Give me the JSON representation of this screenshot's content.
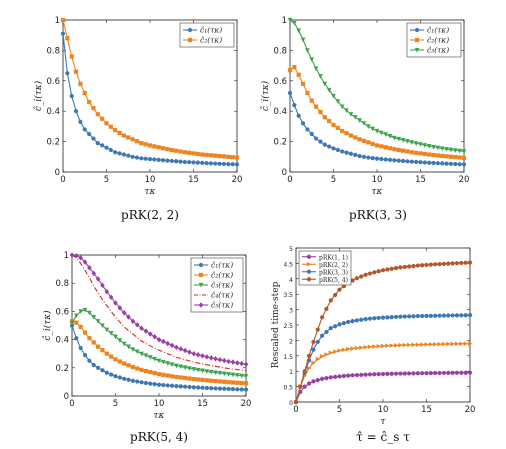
{
  "chart_data": [
    {
      "type": "line",
      "caption": "pRK(2, 2)",
      "xlabel": "τκ",
      "ylabel": "ĉ_i(τκ)",
      "xlim": [
        0,
        20
      ],
      "ylim": [
        0,
        1
      ],
      "xticks": [
        "0",
        "5",
        "10",
        "15",
        "20"
      ],
      "yticks": [
        "0",
        "0.2",
        "0.4",
        "0.6",
        "0.8",
        "1"
      ],
      "legend": "top-right",
      "series": [
        {
          "name": "ĉ₁(τκ)",
          "color": "#3c78b4",
          "marker": "circle",
          "x": [
            0,
            0.5,
            1,
            1.5,
            2,
            2.5,
            3,
            4,
            5,
            6,
            7,
            8,
            9,
            10,
            12,
            14,
            16,
            18,
            20
          ],
          "y": [
            0.91,
            0.65,
            0.5,
            0.4,
            0.33,
            0.28,
            0.25,
            0.19,
            0.16,
            0.13,
            0.115,
            0.1,
            0.09,
            0.085,
            0.075,
            0.066,
            0.06,
            0.054,
            0.05
          ]
        },
        {
          "name": "ĉ₂(τκ)",
          "color": "#ee8420",
          "marker": "square",
          "x": [
            0,
            0.5,
            1,
            1.5,
            2,
            2.5,
            3,
            4,
            5,
            6,
            7,
            8,
            9,
            10,
            12,
            14,
            16,
            18,
            20
          ],
          "y": [
            1.0,
            0.88,
            0.76,
            0.66,
            0.58,
            0.52,
            0.46,
            0.38,
            0.32,
            0.275,
            0.24,
            0.215,
            0.19,
            0.175,
            0.15,
            0.13,
            0.115,
            0.105,
            0.095
          ]
        }
      ]
    },
    {
      "type": "line",
      "caption": "pRK(3, 3)",
      "xlabel": "τκ",
      "ylabel": "ĉ_i(τκ)",
      "xlim": [
        0,
        20
      ],
      "ylim": [
        0,
        1
      ],
      "xticks": [
        "0",
        "5",
        "10",
        "15",
        "20"
      ],
      "yticks": [
        "0",
        "0.2",
        "0.4",
        "0.6",
        "0.8",
        "1"
      ],
      "legend": "top-right",
      "series": [
        {
          "name": "ĉ₁(τκ)",
          "color": "#3c78b4",
          "marker": "circle",
          "x": [
            0,
            0.5,
            1,
            1.5,
            2,
            2.5,
            3,
            4,
            5,
            6,
            7,
            8,
            9,
            10,
            12,
            14,
            16,
            18,
            20
          ],
          "y": [
            0.52,
            0.44,
            0.37,
            0.32,
            0.28,
            0.25,
            0.22,
            0.18,
            0.155,
            0.135,
            0.12,
            0.105,
            0.095,
            0.088,
            0.077,
            0.068,
            0.061,
            0.055,
            0.05
          ]
        },
        {
          "name": "ĉ₂(τκ)",
          "color": "#ee8420",
          "marker": "square",
          "x": [
            0,
            0.5,
            1,
            1.5,
            2,
            2.5,
            3,
            4,
            5,
            6,
            7,
            8,
            9,
            10,
            12,
            14,
            16,
            18,
            20
          ],
          "y": [
            0.67,
            0.69,
            0.64,
            0.58,
            0.52,
            0.47,
            0.43,
            0.36,
            0.31,
            0.27,
            0.24,
            0.215,
            0.195,
            0.175,
            0.15,
            0.13,
            0.115,
            0.103,
            0.093
          ]
        },
        {
          "name": "ĉ₃(τκ)",
          "color": "#3ea34e",
          "marker": "triangle-down",
          "x": [
            0,
            0.5,
            1,
            1.5,
            2,
            2.5,
            3,
            4,
            5,
            6,
            7,
            8,
            9,
            10,
            12,
            14,
            16,
            18,
            20
          ],
          "y": [
            1.0,
            0.98,
            0.93,
            0.87,
            0.8,
            0.74,
            0.68,
            0.58,
            0.5,
            0.43,
            0.38,
            0.34,
            0.3,
            0.27,
            0.225,
            0.195,
            0.17,
            0.15,
            0.135
          ]
        }
      ]
    },
    {
      "type": "line",
      "caption": "pRK(5, 4)",
      "xlabel": "τκ",
      "ylabel": "ĉ_i(τκ)",
      "xlim": [
        0,
        20
      ],
      "ylim": [
        0,
        1
      ],
      "xticks": [
        "0",
        "5",
        "10",
        "15",
        "20"
      ],
      "yticks": [
        "0",
        "0.2",
        "0.4",
        "0.6",
        "0.8",
        "1"
      ],
      "legend": "top-right",
      "series": [
        {
          "name": "ĉ₁(τκ)",
          "color": "#3c78b4",
          "marker": "circle",
          "x": [
            0,
            0.5,
            1,
            1.5,
            2,
            2.5,
            3,
            4,
            5,
            6,
            7,
            8,
            9,
            10,
            12,
            14,
            16,
            18,
            20
          ],
          "y": [
            0.5,
            0.41,
            0.34,
            0.29,
            0.25,
            0.22,
            0.2,
            0.165,
            0.14,
            0.122,
            0.108,
            0.097,
            0.088,
            0.08,
            0.07,
            0.062,
            0.055,
            0.05,
            0.045
          ]
        },
        {
          "name": "ĉ₂(τκ)",
          "color": "#ee8420",
          "marker": "square",
          "x": [
            0,
            0.5,
            1,
            1.5,
            2,
            2.5,
            3,
            4,
            5,
            6,
            7,
            8,
            9,
            10,
            12,
            14,
            16,
            18,
            20
          ],
          "y": [
            0.53,
            0.52,
            0.49,
            0.45,
            0.41,
            0.38,
            0.35,
            0.3,
            0.26,
            0.23,
            0.205,
            0.185,
            0.17,
            0.155,
            0.135,
            0.12,
            0.108,
            0.098,
            0.09
          ]
        },
        {
          "name": "ĉ₃(τκ)",
          "color": "#3ea34e",
          "marker": "triangle-down",
          "x": [
            0,
            0.5,
            1,
            1.5,
            2,
            2.5,
            3,
            4,
            5,
            6,
            7,
            8,
            9,
            10,
            12,
            14,
            16,
            18,
            20
          ],
          "y": [
            0.52,
            0.57,
            0.6,
            0.61,
            0.59,
            0.56,
            0.53,
            0.47,
            0.42,
            0.37,
            0.33,
            0.3,
            0.275,
            0.25,
            0.215,
            0.19,
            0.17,
            0.155,
            0.14
          ]
        },
        {
          "name": "ĉ₄(τκ)",
          "color": "#dd2222",
          "marker": "none",
          "dash": "dashdot",
          "x": [
            0,
            0.5,
            1,
            1.5,
            2,
            2.5,
            3,
            4,
            5,
            6,
            7,
            8,
            9,
            10,
            12,
            14,
            16,
            18,
            20
          ],
          "y": [
            1.0,
            0.98,
            0.94,
            0.89,
            0.84,
            0.78,
            0.73,
            0.64,
            0.56,
            0.49,
            0.44,
            0.39,
            0.355,
            0.325,
            0.275,
            0.24,
            0.215,
            0.195,
            0.18
          ]
        },
        {
          "name": "ĉ₅(τκ)",
          "color": "#9b3fa8",
          "marker": "diamond",
          "x": [
            0,
            0.5,
            1,
            1.5,
            2,
            2.5,
            3,
            4,
            5,
            6,
            7,
            8,
            9,
            10,
            12,
            14,
            16,
            18,
            20
          ],
          "y": [
            1.0,
            0.995,
            0.98,
            0.95,
            0.91,
            0.87,
            0.83,
            0.74,
            0.66,
            0.59,
            0.53,
            0.48,
            0.44,
            0.4,
            0.345,
            0.3,
            0.27,
            0.245,
            0.225
          ]
        }
      ]
    },
    {
      "type": "line",
      "caption": "τ̂ = ĉ_s τ",
      "xlabel": "τ",
      "ylabel": "Rescaled time-step",
      "xlim": [
        0,
        20
      ],
      "ylim": [
        0,
        5
      ],
      "xticks": [
        "0",
        "5",
        "10",
        "15",
        "20"
      ],
      "yticks": [
        "0",
        "0.5",
        "1",
        "1.5",
        "2",
        "2.5",
        "3",
        "3.5",
        "4",
        "4.5",
        "5"
      ],
      "legend": "top-left",
      "series": [
        {
          "name": "pRK(1, 1)",
          "color": "#9b3fa8",
          "marker": "circle",
          "x": [
            0,
            0.5,
            1,
            1.5,
            2,
            2.5,
            3,
            4,
            5,
            6,
            7,
            8,
            9,
            10,
            12,
            14,
            16,
            18,
            20
          ],
          "y": [
            0,
            0.33,
            0.5,
            0.6,
            0.67,
            0.71,
            0.75,
            0.8,
            0.83,
            0.857,
            0.875,
            0.889,
            0.9,
            0.909,
            0.923,
            0.933,
            0.941,
            0.947,
            0.952
          ]
        },
        {
          "name": "pRK(2, 2)",
          "color": "#ee8420",
          "marker": "triangle-right",
          "x": [
            0,
            0.5,
            1,
            1.5,
            2,
            2.5,
            3,
            4,
            5,
            6,
            7,
            8,
            9,
            10,
            12,
            14,
            16,
            18,
            20
          ],
          "y": [
            0,
            0.5,
            0.85,
            1.1,
            1.27,
            1.39,
            1.48,
            1.6,
            1.67,
            1.72,
            1.75,
            1.78,
            1.8,
            1.82,
            1.845,
            1.86,
            1.875,
            1.885,
            1.895
          ]
        },
        {
          "name": "pRK(3, 3)",
          "color": "#3c78b4",
          "marker": "circle",
          "x": [
            0,
            0.5,
            1,
            1.5,
            2,
            2.5,
            3,
            4,
            5,
            6,
            7,
            8,
            9,
            10,
            12,
            14,
            16,
            18,
            20
          ],
          "y": [
            0,
            0.5,
            0.95,
            1.35,
            1.7,
            1.95,
            2.15,
            2.4,
            2.52,
            2.6,
            2.65,
            2.69,
            2.72,
            2.74,
            2.77,
            2.79,
            2.8,
            2.81,
            2.82
          ]
        },
        {
          "name": "pRK(5, 4)",
          "color": "#b4552a",
          "marker": "circle",
          "x": [
            0,
            0.5,
            1,
            1.5,
            2,
            2.5,
            3,
            4,
            5,
            6,
            7,
            8,
            9,
            10,
            12,
            14,
            16,
            18,
            20
          ],
          "y": [
            0,
            0.5,
            1.0,
            1.5,
            1.95,
            2.35,
            2.75,
            3.3,
            3.65,
            3.87,
            4.02,
            4.13,
            4.21,
            4.28,
            4.37,
            4.43,
            4.47,
            4.5,
            4.53
          ]
        }
      ]
    }
  ]
}
